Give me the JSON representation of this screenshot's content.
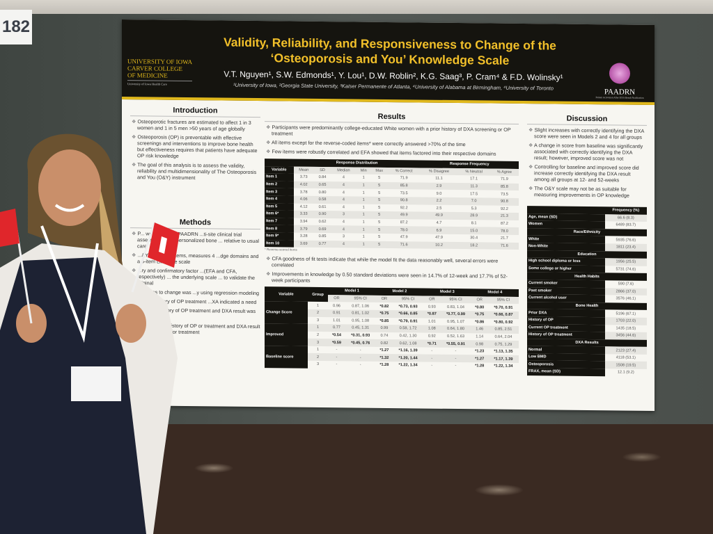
{
  "booth_number": "182",
  "header": {
    "title_line1": "Validity, Reliability, and Responsiveness to Change of the",
    "title_line2": "‘Osteoporosis and You’ Knowledge Scale",
    "authors": "V.T. Nguyen¹, S.W. Edmonds¹, Y. Lou¹, D.W. Roblin², K.G. Saag³, P. Cram⁴ & F.D. Wolinsky¹",
    "affiliations": "¹University of Iowa, ²Georgia State University, ³Kaiser Permanente of Atlanta, ⁴University of Alabama at Birmingham, ⁴University of Toronto",
    "logo_left": [
      "UNIVERSITY OF IOWA",
      "CARVER COLLEGE",
      "OF MEDICINE"
    ],
    "logo_left_sub": "University of Iowa Health Care",
    "logo_right": "PAADRN",
    "logo_right_sub": "Patient Activation After DXA Result Notification"
  },
  "introduction": {
    "title": "Introduction",
    "bullets": [
      "Osteoporotic fractures are estimated to affect 1 in 3 women and 1 in 5 men >50 years of age globally",
      "Osteoporosis (OP) is preventable with effective screenings and interventions to improve bone health but effectiveness requires that patients have adequate OP risk knowledge",
      "The goal of this analysis is to assess the validity, reliability and multidimensionality of The Osteoporosis and You (O&Y) instrument"
    ]
  },
  "methods": {
    "title": "Methods",
    "bullets": [
      "P... were from the PAADRN ...ti-site clinical trial assessing ... of a personalized bone ... relative to usual care",
      "...&Y ...ale is 10 items, measures 4 ...dge domains and a 5-item Likert ...e scale",
      "...ry and confirmatory factor ...(EFA and CFA, respectively) ... the underlying scale ... to validate the original",
      "...veness to change was ...y using regression modeling",
      "...1: No history of OP treatment ...XA indicated a need",
      "...p 2: No history of OP treatment and DXA result was normal",
      "Group 3: Any history of OP or treatment and DXA result indicated need for treatment"
    ]
  },
  "results": {
    "title": "Results",
    "bullets_top": [
      "Participants were predominantly college-educated White women with a prior history of DXA screening or OP treatment",
      "All items except for the reverse-coded items* were correctly answered >70% of the time",
      "Few items were robustly correlated and EFA showed that items factored into their respective domains"
    ],
    "table1": {
      "group_headers": [
        "Response Distribution",
        "Response Frequency"
      ],
      "columns": [
        "Variable",
        "Mean",
        "SD",
        "Median",
        "Min",
        "Max",
        "% Correct",
        "% Disagree",
        "% Neutral",
        "% Agree"
      ],
      "rows": [
        [
          "Item 1",
          "3.73",
          "0.84",
          "4",
          "1",
          "5",
          "71.9",
          "11.1",
          "17.1",
          "71.9"
        ],
        [
          "Item 2",
          "4.02",
          "0.65",
          "4",
          "1",
          "5",
          "85.8",
          "2.9",
          "11.3",
          "85.8"
        ],
        [
          "Item 3",
          "3.78",
          "0.80",
          "4",
          "1",
          "5",
          "73.5",
          "9.0",
          "17.5",
          "73.5"
        ],
        [
          "Item 4",
          "4.06",
          "0.58",
          "4",
          "1",
          "5",
          "90.8",
          "2.2",
          "7.0",
          "90.8"
        ],
        [
          "Item 5",
          "4.12",
          "0.61",
          "4",
          "1",
          "5",
          "92.2",
          "2.5",
          "5.3",
          "92.2"
        ],
        [
          "Item 6*",
          "3.33",
          "0.90",
          "3",
          "1",
          "5",
          "49.9",
          "49.9",
          "28.9",
          "21.3"
        ],
        [
          "Item 7",
          "3.94",
          "0.62",
          "4",
          "1",
          "5",
          "87.2",
          "4.7",
          "8.1",
          "87.2"
        ],
        [
          "Item 8",
          "3.79",
          "0.69",
          "4",
          "1",
          "5",
          "78.0",
          "6.9",
          "15.0",
          "78.0"
        ],
        [
          "Item 9*",
          "3.28",
          "0.85",
          "3",
          "1",
          "5",
          "47.9",
          "47.9",
          "30.4",
          "21.7"
        ],
        [
          "Item 10",
          "3.69",
          "0.77",
          "4",
          "1",
          "5",
          "71.6",
          "10.2",
          "18.2",
          "71.6"
        ]
      ],
      "footnote": "* Reverse-scored items"
    },
    "bullets_mid": [
      "CFA goodness of fit tests indicate that while the model fit the data reasonably well, several errors were correlated",
      "Improvements in knowledge by 0.50 standard deviations were seen in 14.7% of 12-week and 17.7% of 52-week participants"
    ],
    "table2": {
      "columns": [
        "Variable",
        "Group"
      ],
      "models": [
        "Model 1",
        "Model 2",
        "Model 3",
        "Model 4"
      ],
      "sub": [
        "OR",
        "95% CI"
      ],
      "blocks": [
        {
          "label": "Change Score",
          "rows": [
            [
              "1",
              "0.96",
              "0.87, 1.06",
              "*0.82",
              "*0.73, 0.93",
              "0.93",
              "0.83, 1.04",
              "*0.80",
              "*0.70, 0.91"
            ],
            [
              "2",
              "0.91",
              "0.81, 1.02",
              "*0.75",
              "*0.66, 0.85",
              "*0.87",
              "*0.77, 0.99",
              "*0.75",
              "*0.66, 0.87"
            ],
            [
              "3",
              "1.01",
              "0.95, 1.08",
              "*0.85",
              "*0.79, 0.91",
              "1.01",
              "0.95, 1.07",
              "*0.86",
              "*0.80, 0.92"
            ]
          ]
        },
        {
          "label": "Improved",
          "rows": [
            [
              "1",
              "0.77",
              "0.45, 1.31",
              "0.99",
              "0.58, 1.72",
              "1.08",
              "0.64, 1.80",
              "1.46",
              "0.85, 2.51"
            ],
            [
              "2",
              "*0.54",
              "*0.31, 0.93",
              "0.74",
              "0.42, 1.30",
              "0.92",
              "0.52, 1.63",
              "1.14",
              "0.64, 2.04"
            ],
            [
              "3",
              "*0.59",
              "*0.45, 0.76",
              "0.82",
              "0.62, 1.08",
              "*0.71",
              "*0.55, 0.91",
              "0.98",
              "0.75, 1.29"
            ]
          ]
        },
        {
          "label": "Baseline score",
          "rows": [
            [
              "1",
              "-",
              "-",
              "*1.27",
              "*1.16, 1.39",
              "-",
              "-",
              "*1.23",
              "*1.13, 1.35"
            ],
            [
              "2",
              "-",
              "-",
              "*1.32",
              "*1.20, 1.44",
              "-",
              "-",
              "*1.27",
              "*1.17, 1.39"
            ],
            [
              "3",
              "-",
              "-",
              "*1.28",
              "*1.22, 1.34",
              "-",
              "-",
              "*1.28",
              "*1.22, 1.34"
            ]
          ]
        }
      ]
    }
  },
  "discussion": {
    "title": "Discussion",
    "bullets": [
      "Slight increases with correctly identifying the DXA score were seen in Models 2 and 4 for all groups",
      "A change in score from baseline was significantly associated with correctly identifying the DXA result; however, improved score was not",
      "Controlling for baseline and improved score did increase correctly identifying the DXA result among all groups at 12- and 52-weeks",
      "The O&Y scale may not be as suitable for measuring improvements in OP knowledge"
    ],
    "table3": {
      "header": "Frequency (%)",
      "rows": [
        {
          "label": "Age, mean (SD)",
          "value": "66.6 (8.3)"
        },
        {
          "label": "Women",
          "value": "6489 (83.7)"
        },
        {
          "section": "Race/Ethnicity"
        },
        {
          "label": "White",
          "value": "5935 (76.6)"
        },
        {
          "label": "Non-White",
          "value": "1811 (23.4)"
        },
        {
          "section": "Education"
        },
        {
          "label": "High school diploma or less",
          "value": "1956 (25.5)"
        },
        {
          "label": "Some college or higher",
          "value": "5731 (74.6)"
        },
        {
          "section": "Health Habits"
        },
        {
          "label": "Current smoker",
          "value": "590 (7.6)"
        },
        {
          "label": "Past smoker",
          "value": "2866 (37.0)"
        },
        {
          "label": "Current alcohol user",
          "value": "3576 (46.1)"
        },
        {
          "section": "Bone Health"
        },
        {
          "label": "Prior DXA",
          "value": "5196 (67.1)"
        },
        {
          "label": "History of OP",
          "value": "1703 (22.0)"
        },
        {
          "label": "Current OP treatment",
          "value": "1435 (18.5)"
        },
        {
          "label": "History of OP treatment",
          "value": "3456 (44.6)"
        },
        {
          "section": "DXA Results"
        },
        {
          "label": "Normal",
          "value": "2123 (27.4)"
        },
        {
          "label": "Low BMD",
          "value": "4118 (53.1)"
        },
        {
          "label": "Osteoporosis",
          "value": "1508 (19.5)"
        },
        {
          "label": "FRAX, mean (SD)",
          "value": "12.1 (9.2)"
        }
      ]
    }
  },
  "colors": {
    "title_gold": "#f2c02a",
    "header_black": "#15140f",
    "accent_yellow": "#e0b81c",
    "flag_red": "#e0262b"
  }
}
